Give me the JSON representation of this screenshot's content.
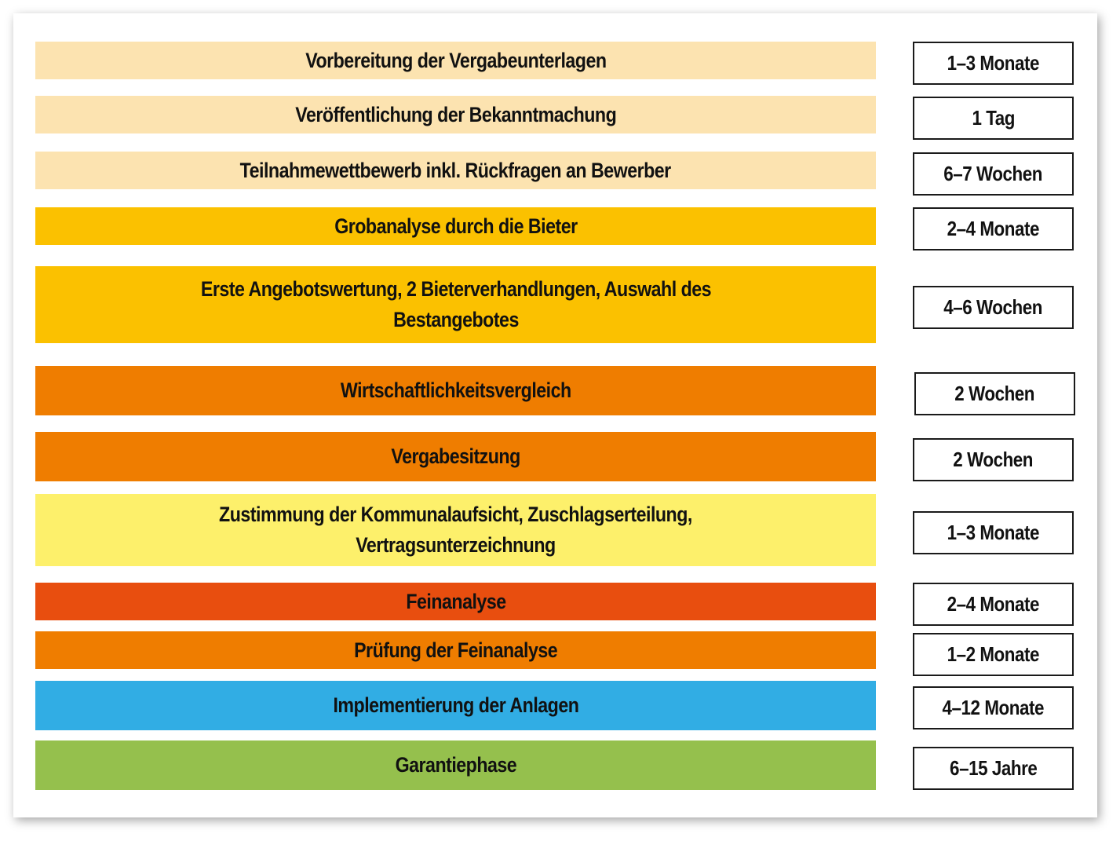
{
  "colors": {
    "light_peach": "#fce3b0",
    "amber": "#fbc100",
    "orange": "#ef7d00",
    "light_yellow": "#fdf06b",
    "red_orange": "#e84e0f",
    "blue": "#31ade4",
    "green": "#95c04d"
  },
  "steps": [
    {
      "label": "Vorbereitung der Vergabeunterlagen",
      "duration": "1–3 Monate",
      "color": "#fce3b0"
    },
    {
      "label": "Veröffentlichung der Bekanntmachung",
      "duration": "1 Tag",
      "color": "#fce3b0"
    },
    {
      "label": "Teilnahmewettbewerb inkl. Rückfragen an Bewerber",
      "duration": "6–7 Wochen",
      "color": "#fce3b0"
    },
    {
      "label": "Grobanalyse durch die Bieter",
      "duration": "2–4 Monate",
      "color": "#fbc100"
    },
    {
      "label": "Erste Angebotswertung, 2 Bieterverhandlungen, Auswahl des\nBestangebotes",
      "duration": "4–6 Wochen",
      "color": "#fbc100"
    },
    {
      "label": "Wirtschaftlichkeitsvergleich",
      "duration": "2 Wochen",
      "color": "#ef7d00"
    },
    {
      "label": "Vergabesitzung",
      "duration": "2 Wochen",
      "color": "#ef7d00"
    },
    {
      "label": "Zustimmung der Kommunalaufsicht, Zuschlagserteilung,\nVertragsunterzeichnung",
      "duration": "1–3 Monate",
      "color": "#fdf06b"
    },
    {
      "label": "Feinanalyse",
      "duration": "2–4 Monate",
      "color": "#e84e0f"
    },
    {
      "label": "Prüfung der Feinanalyse",
      "duration": "1–2 Monate",
      "color": "#ef7d00"
    },
    {
      "label": "Implementierung der Anlagen",
      "duration": "4–12 Monate",
      "color": "#31ade4"
    },
    {
      "label": "Garantiephase",
      "duration": "6–15 Jahre",
      "color": "#95c04d"
    }
  ]
}
